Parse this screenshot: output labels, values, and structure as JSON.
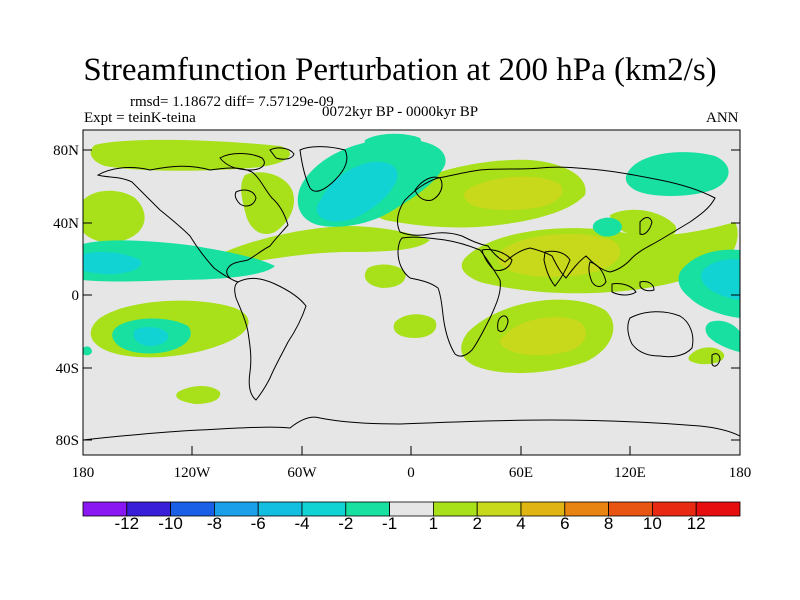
{
  "title": "Streamfunction Perturbation at 200 hPa (km2/s)",
  "stats": "rmsd= 1.18672 diff= 7.57129e-09",
  "experiment": "Expt = teinK-teina",
  "period": "0072kyr BP - 0000kyr BP",
  "season": "ANN",
  "lat_labels": [
    "80N",
    "40N",
    "0",
    "40S",
    "80S"
  ],
  "lon_labels": [
    "180",
    "120W",
    "60W",
    "0",
    "60E",
    "120E",
    "180"
  ],
  "colorbar": {
    "labels": [
      "-12",
      "-10",
      "-8",
      "-6",
      "-4",
      "-2",
      "-1",
      "1",
      "2",
      "4",
      "6",
      "8",
      "10",
      "12"
    ],
    "colors": [
      "#8a18f2",
      "#3a1fd8",
      "#1a5fe6",
      "#1a9fe8",
      "#12bfe0",
      "#12d3d3",
      "#18e0a0",
      "#e6e6e6",
      "#a8e01a",
      "#c8d81a",
      "#e0b412",
      "#e88412",
      "#e85412",
      "#e82a12",
      "#e60e0e"
    ]
  },
  "colors": {
    "background": "#e6e6e6",
    "pos1": "#a8e01a",
    "pos2": "#c8d81a",
    "neg1": "#18e0a0",
    "neg2": "#12d3d3",
    "neg3": "#12bfe0"
  }
}
